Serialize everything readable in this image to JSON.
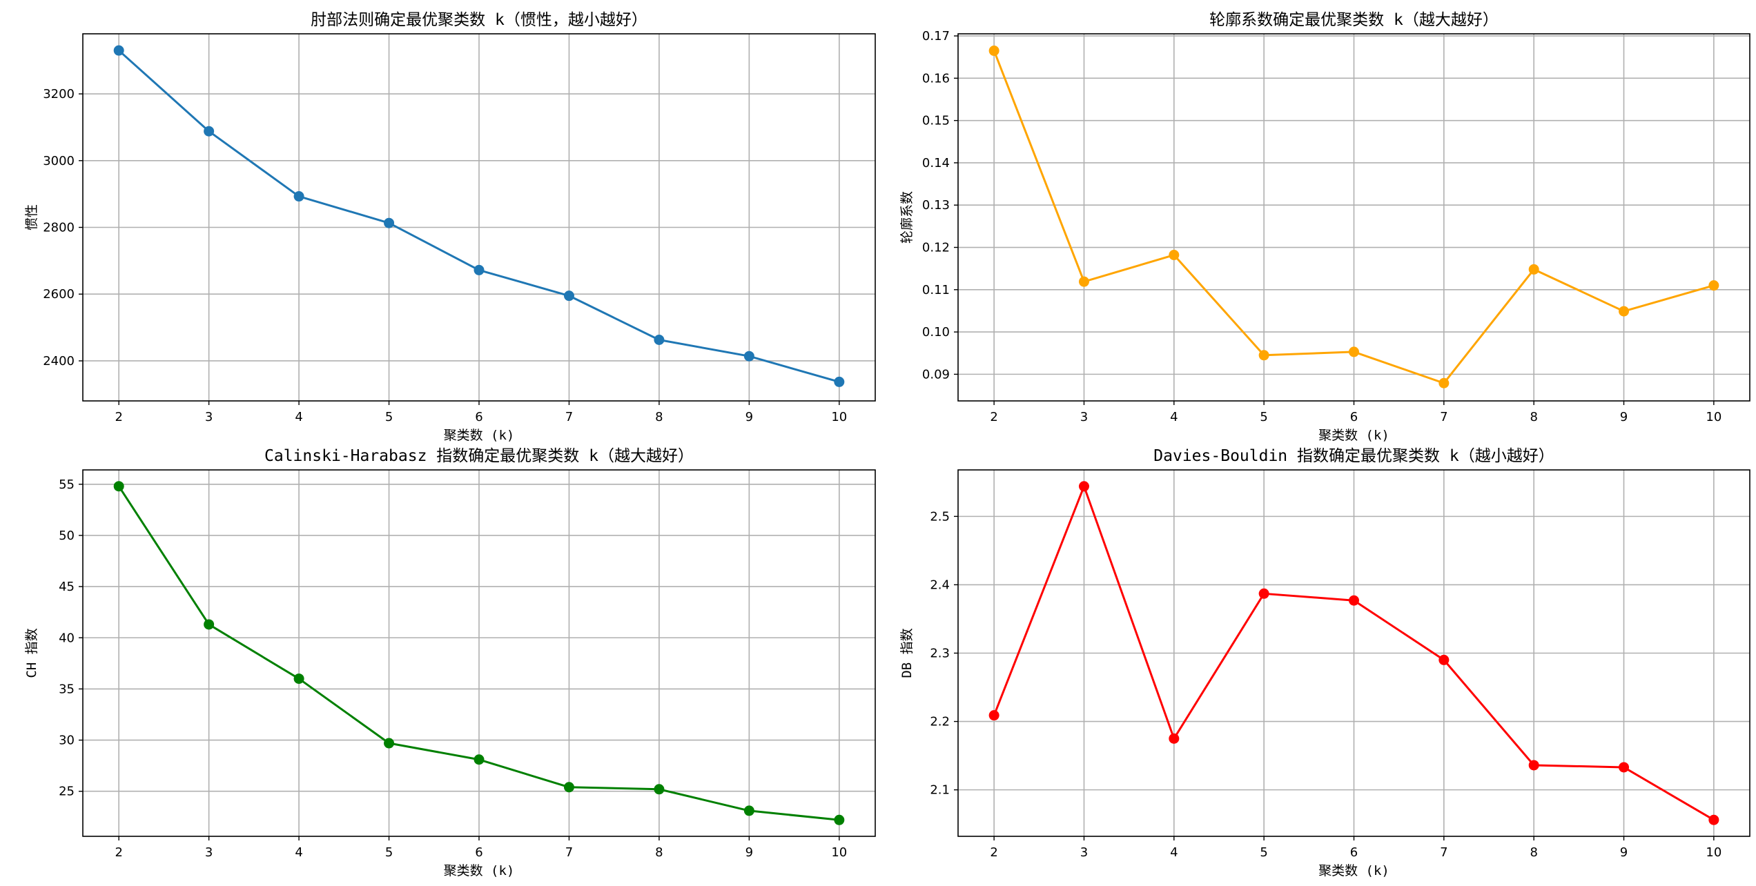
{
  "chart_data": [
    {
      "type": "line",
      "title": "肘部法则确定最优聚类数 k（惯性，越小越好）",
      "xlabel": "聚类数 (k)",
      "ylabel": "惯性",
      "x": [
        2,
        3,
        4,
        5,
        6,
        7,
        8,
        9,
        10
      ],
      "series": [
        {
          "values": [
            3330,
            3088,
            2893,
            2813,
            2672,
            2595,
            2463,
            2414,
            2337
          ],
          "color": "#1f77b4"
        }
      ],
      "xlim": [
        1.6,
        10.4
      ],
      "ylim": [
        2280,
        3380
      ],
      "yticks": [
        2400,
        2600,
        2800,
        3000,
        3200
      ],
      "ytick_labels": [
        "2400",
        "2600",
        "2800",
        "3000",
        "3200"
      ],
      "grid": true
    },
    {
      "type": "line",
      "title": "轮廓系数确定最优聚类数 k（越大越好）",
      "xlabel": "聚类数 (k)",
      "ylabel": "轮廓系数",
      "x": [
        2,
        3,
        4,
        5,
        6,
        7,
        8,
        9,
        10
      ],
      "series": [
        {
          "values": [
            0.1665,
            0.1119,
            0.1182,
            0.0945,
            0.0953,
            0.0879,
            0.1148,
            0.1049,
            0.111
          ],
          "color": "#ffa500"
        }
      ],
      "xlim": [
        1.6,
        10.4
      ],
      "ylim": [
        0.0837,
        0.1705
      ],
      "yticks": [
        0.09,
        0.1,
        0.11,
        0.12,
        0.13,
        0.14,
        0.15,
        0.16,
        0.17
      ],
      "ytick_labels": [
        "0.09",
        "0.10",
        "0.11",
        "0.12",
        "0.13",
        "0.14",
        "0.15",
        "0.16",
        "0.17"
      ],
      "grid": true
    },
    {
      "type": "line",
      "title": "Calinski-Harabasz 指数确定最优聚类数 k（越大越好）",
      "xlabel": "聚类数 (k)",
      "ylabel": "CH 指数",
      "x": [
        2,
        3,
        4,
        5,
        6,
        7,
        8,
        9,
        10
      ],
      "series": [
        {
          "values": [
            54.8,
            41.3,
            36.0,
            29.7,
            28.1,
            25.4,
            25.2,
            23.1,
            22.2
          ],
          "color": "#008000"
        }
      ],
      "xlim": [
        1.6,
        10.4
      ],
      "ylim": [
        20.6,
        56.4
      ],
      "yticks": [
        25,
        30,
        35,
        40,
        45,
        50,
        55
      ],
      "ytick_labels": [
        "25",
        "30",
        "35",
        "40",
        "45",
        "50",
        "55"
      ],
      "grid": true
    },
    {
      "type": "line",
      "title": "Davies-Bouldin 指数确定最优聚类数 k（越小越好）",
      "xlabel": "聚类数 (k)",
      "ylabel": "DB 指数",
      "x": [
        2,
        3,
        4,
        5,
        6,
        7,
        8,
        9,
        10
      ],
      "series": [
        {
          "values": [
            2.209,
            2.544,
            2.175,
            2.387,
            2.377,
            2.29,
            2.136,
            2.133,
            2.056
          ],
          "color": "#ff0000"
        }
      ],
      "xlim": [
        1.6,
        10.4
      ],
      "ylim": [
        2.032,
        2.568
      ],
      "yticks": [
        2.1,
        2.2,
        2.3,
        2.4,
        2.5
      ],
      "ytick_labels": [
        "2.1",
        "2.2",
        "2.3",
        "2.4",
        "2.5"
      ],
      "grid": true
    }
  ]
}
